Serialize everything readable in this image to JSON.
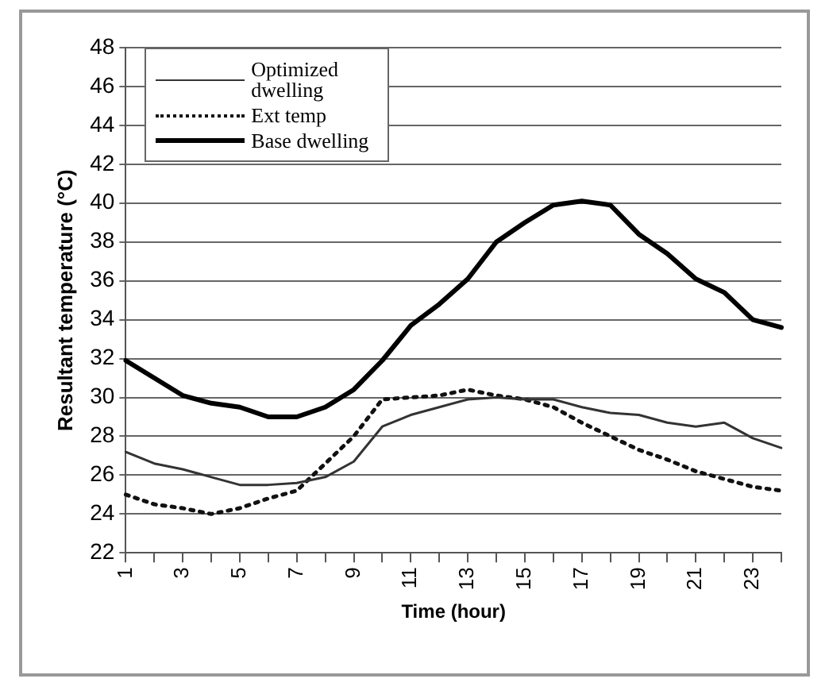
{
  "chart_data": {
    "type": "line",
    "xlabel": "Time (hour)",
    "ylabel": "Resultant temperature (°C)",
    "categories": [
      "1",
      null,
      "3",
      null,
      "5",
      null,
      "7",
      null,
      "9",
      null,
      "11",
      null,
      "13",
      null,
      "15",
      null,
      "17",
      null,
      "19",
      null,
      "21",
      null,
      "23",
      null
    ],
    "ylim": [
      22,
      48
    ],
    "yticks": [
      22,
      24,
      26,
      28,
      30,
      32,
      34,
      36,
      38,
      40,
      42,
      44,
      46,
      48
    ],
    "grid": "y",
    "legend": "top left",
    "marker": "none",
    "series": [
      {
        "name": "Optimized dwelling",
        "color": "#333333",
        "line_style": "solid",
        "values": [
          27.2,
          26.6,
          26.3,
          25.9,
          25.5,
          25.5,
          25.6,
          25.9,
          26.7,
          28.5,
          29.1,
          29.5,
          29.9,
          30,
          29.9,
          29.9,
          29.5,
          29.2,
          29.1,
          28.7,
          28.5,
          28.7,
          27.9,
          27.4
        ]
      },
      {
        "name": "Ext temp",
        "color": "#111111",
        "line_style": "dotted",
        "values": [
          25,
          24.5,
          24.3,
          24,
          24.3,
          24.8,
          25.2,
          26.6,
          28,
          29.9,
          30,
          30.1,
          30.4,
          30.1,
          29.9,
          29.5,
          28.7,
          28,
          27.3,
          26.8,
          26.2,
          25.8,
          25.4,
          25.2
        ]
      },
      {
        "name": "Base dwelling",
        "color": "#000000",
        "line_style": "solid",
        "values": [
          31.9,
          31,
          30.1,
          29.7,
          29.5,
          29,
          29,
          29.5,
          30.4,
          31.9,
          33.7,
          34.8,
          36.1,
          38,
          39,
          39.9,
          40.1,
          39.9,
          38.4,
          37.4,
          36.1,
          35.4,
          34,
          33.6
        ]
      }
    ]
  }
}
